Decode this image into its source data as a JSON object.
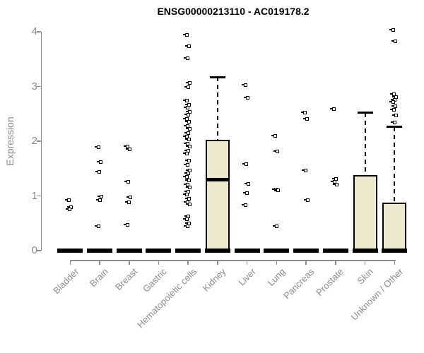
{
  "title": "ENSG00000213110 - AC019178.2",
  "colors": {
    "box_fill": "#eee8cd",
    "box_border": "#000000",
    "median": "#000000",
    "point": "#000000",
    "axis": "#8c8c8c",
    "tick_label": "#8c8c8c",
    "title": "#000000",
    "background": "#ffffff"
  },
  "chart_data": {
    "type": "boxplot",
    "title": "ENSG00000213110 - AC019178.2",
    "xlabel": "",
    "ylabel": "Expression",
    "ylim": [
      0,
      4
    ],
    "yticks": [
      "0",
      "1",
      "2",
      "3",
      "4"
    ],
    "grid": false,
    "legend": false,
    "categories": [
      "Bladder",
      "Brain",
      "Breast",
      "Gastric",
      "Hematopoietic cells",
      "Kidney",
      "Liver",
      "Lung",
      "Pancreas",
      "Prostate",
      "Skin",
      "Unknown / Other"
    ],
    "boxes": [
      {
        "category": "Bladder",
        "q1": 0,
        "median": 0,
        "q3": 0,
        "whisker_low": 0,
        "whisker_high": 0,
        "points": [
          0.92,
          0.79,
          0.75
        ]
      },
      {
        "category": "Brain",
        "q1": 0,
        "median": 0,
        "q3": 0,
        "whisker_low": 0,
        "whisker_high": 0,
        "points": [
          1.89,
          1.62,
          1.44,
          0.99,
          0.92,
          0.45
        ]
      },
      {
        "category": "Breast",
        "q1": 0,
        "median": 0,
        "q3": 0,
        "whisker_low": 0,
        "whisker_high": 0,
        "points": [
          1.9,
          1.85,
          1.26,
          0.97,
          0.88,
          0.47
        ]
      },
      {
        "category": "Gastric",
        "q1": 0,
        "median": 0,
        "q3": 0,
        "whisker_low": 0,
        "whisker_high": 0,
        "points": []
      },
      {
        "category": "Hematopoietic cells",
        "q1": 0,
        "median": 0,
        "q3": 0,
        "whisker_low": 0,
        "whisker_high": 0,
        "points": [
          3.94,
          3.74,
          3.51,
          3.06,
          2.99,
          2.74,
          2.67,
          2.61,
          2.54,
          2.48,
          2.41,
          2.35,
          2.28,
          2.22,
          2.15,
          2.09,
          2.03,
          1.96,
          1.9,
          1.83,
          1.77,
          1.64,
          1.57,
          1.47,
          1.41,
          1.35,
          1.28,
          1.21,
          1.16,
          1.08,
          1.02,
          0.95,
          0.89,
          0.84,
          0.63,
          0.57,
          0.5,
          0.45
        ]
      },
      {
        "category": "Kidney",
        "q1": 0,
        "median": 1.3,
        "q3": 2.03,
        "whisker_low": 0,
        "whisker_high": 3.17,
        "points": []
      },
      {
        "category": "Liver",
        "q1": 0,
        "median": 0,
        "q3": 0,
        "whisker_low": 0,
        "whisker_high": 0,
        "points": [
          3.03,
          2.8,
          1.58,
          1.22,
          1.05,
          0.83
        ]
      },
      {
        "category": "Lung",
        "q1": 0,
        "median": 0,
        "q3": 0,
        "whisker_low": 0,
        "whisker_high": 0,
        "points": [
          2.1,
          1.81,
          1.12,
          1.1,
          0.44
        ]
      },
      {
        "category": "Pancreas",
        "q1": 0,
        "median": 0,
        "q3": 0,
        "whisker_low": 0,
        "whisker_high": 0,
        "points": [
          2.52,
          2.41,
          1.47,
          0.92
        ]
      },
      {
        "category": "Prostate",
        "q1": 0,
        "median": 0,
        "q3": 0,
        "whisker_low": 0,
        "whisker_high": 0,
        "points": [
          2.59,
          1.31,
          1.26,
          1.21
        ]
      },
      {
        "category": "Skin",
        "q1": 0,
        "median": 0.04,
        "q3": 1.38,
        "whisker_low": 0,
        "whisker_high": 2.52,
        "points": []
      },
      {
        "category": "Unknown / Other",
        "q1": 0,
        "median": 0.04,
        "q3": 0.88,
        "whisker_low": 0,
        "whisker_high": 2.26,
        "points": [
          4.03,
          3.83,
          2.86,
          2.81,
          2.76,
          2.71,
          2.64,
          2.58,
          2.47,
          2.34
        ]
      }
    ]
  }
}
